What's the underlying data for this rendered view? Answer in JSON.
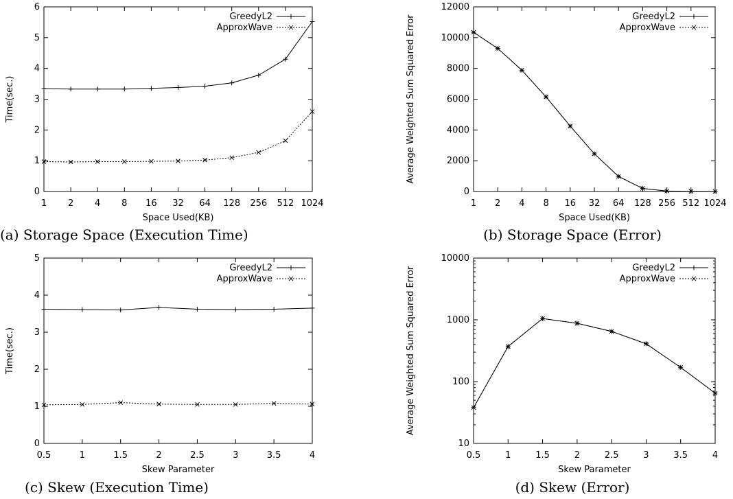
{
  "chart_data": [
    {
      "id": "a",
      "type": "line",
      "caption": "(a) Storage Space (Execution Time)",
      "xlabel": "Space Used(KB)",
      "ylabel": "Time(sec.)",
      "categories": [
        "1",
        "2",
        "4",
        "8",
        "16",
        "32",
        "64",
        "128",
        "256",
        "512",
        "1024"
      ],
      "yticks": [
        "0",
        "1",
        "2",
        "3",
        "4",
        "5",
        "6"
      ],
      "ylim": [
        0,
        6
      ],
      "yscale": "linear",
      "legend": "top-right",
      "series": [
        {
          "name": "GreedyL2",
          "marker": "+",
          "dash": false,
          "values": [
            3.34,
            3.33,
            3.33,
            3.33,
            3.35,
            3.38,
            3.42,
            3.53,
            3.78,
            4.3,
            5.52
          ]
        },
        {
          "name": "ApproxWave",
          "marker": "x",
          "dash": true,
          "values": [
            0.97,
            0.96,
            0.97,
            0.97,
            0.98,
            0.99,
            1.02,
            1.1,
            1.27,
            1.65,
            2.6
          ]
        }
      ]
    },
    {
      "id": "b",
      "type": "line",
      "caption": "(b) Storage Space (Error)",
      "xlabel": "Space Used(KB)",
      "ylabel": "Average Weighted Sum Squared Error",
      "categories": [
        "1",
        "2",
        "4",
        "8",
        "16",
        "32",
        "64",
        "128",
        "256",
        "512",
        "1024"
      ],
      "yticks": [
        "0",
        "2000",
        "4000",
        "6000",
        "8000",
        "10000",
        "12000"
      ],
      "ylim": [
        0,
        12000
      ],
      "yscale": "linear",
      "legend": "top-right",
      "series": [
        {
          "name": "GreedyL2",
          "marker": "+",
          "dash": false,
          "values": [
            10350,
            9300,
            7880,
            6150,
            4250,
            2450,
            980,
            200,
            30,
            10,
            5
          ]
        },
        {
          "name": "ApproxWave",
          "marker": "x",
          "dash": true,
          "values": [
            10350,
            9300,
            7880,
            6150,
            4250,
            2450,
            980,
            200,
            30,
            10,
            5
          ]
        }
      ]
    },
    {
      "id": "c",
      "type": "line",
      "caption": "(c) Skew (Execution Time)",
      "xlabel": "Skew Parameter",
      "ylabel": "Time(sec.)",
      "x": [
        0.5,
        1,
        1.5,
        2,
        2.5,
        3,
        3.5,
        4
      ],
      "xticks": [
        "0.5",
        "1",
        "1.5",
        "2",
        "2.5",
        "3",
        "3.5",
        "4"
      ],
      "xlim": [
        0.5,
        4
      ],
      "yticks": [
        "0",
        "1",
        "2",
        "3",
        "4",
        "5"
      ],
      "ylim": [
        0,
        5
      ],
      "yscale": "linear",
      "legend": "top-right",
      "series": [
        {
          "name": "GreedyL2",
          "marker": "+",
          "dash": false,
          "values": [
            3.62,
            3.61,
            3.6,
            3.67,
            3.62,
            3.61,
            3.62,
            3.65
          ]
        },
        {
          "name": "ApproxWave",
          "marker": "x",
          "dash": true,
          "values": [
            1.04,
            1.05,
            1.1,
            1.06,
            1.05,
            1.05,
            1.08,
            1.06
          ]
        }
      ]
    },
    {
      "id": "d",
      "type": "line",
      "caption": "(d) Skew (Error)",
      "xlabel": "Skew Parameter",
      "ylabel": "Average Weighted Sum Squared Error",
      "x": [
        0.5,
        1,
        1.5,
        2,
        2.5,
        3,
        3.5,
        4
      ],
      "xticks": [
        "0.5",
        "1",
        "1.5",
        "2",
        "2.5",
        "3",
        "3.5",
        "4"
      ],
      "xlim": [
        0.5,
        4
      ],
      "yticks": [
        "10",
        "100",
        "1000",
        "10000"
      ],
      "ylim": [
        10,
        10000
      ],
      "yscale": "log",
      "legend": "top-right",
      "series": [
        {
          "name": "GreedyL2",
          "marker": "+",
          "dash": false,
          "values": [
            38,
            370,
            1050,
            880,
            650,
            410,
            170,
            65
          ]
        },
        {
          "name": "ApproxWave",
          "marker": "x",
          "dash": true,
          "values": [
            38,
            370,
            1050,
            880,
            650,
            410,
            170,
            65
          ]
        }
      ]
    }
  ]
}
